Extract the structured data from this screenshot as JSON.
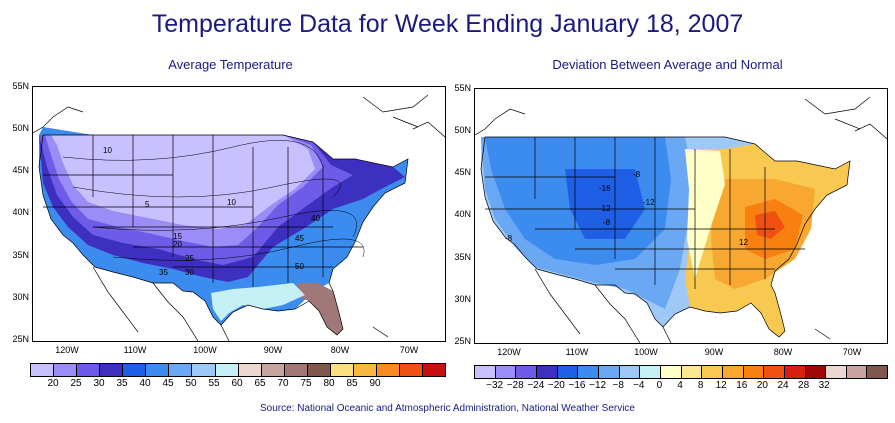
{
  "title": "Temperature Data for Week Ending January 18, 2007",
  "left_panel": {
    "subtitle": "Average Temperature",
    "lat_labels": [
      "55N",
      "50N",
      "45N",
      "40N",
      "35N",
      "30N",
      "25N"
    ],
    "lon_labels": [
      "120W",
      "110W",
      "100W",
      "90W",
      "80W",
      "70W"
    ],
    "contour_labels": [
      "10",
      "5",
      "10",
      "15",
      "20",
      "25",
      "30",
      "35",
      "40",
      "45",
      "50"
    ],
    "colorbar": {
      "colors": [
        "#c8c0ff",
        "#9c8cf8",
        "#6e5ce8",
        "#3d2fc0",
        "#1e5fe6",
        "#3c8cf0",
        "#6aa8f4",
        "#9ec8f6",
        "#c4f0f6",
        "#ecd8d0",
        "#c8a4a0",
        "#a07878",
        "#80584c",
        "#f8e080",
        "#f8b840",
        "#f88c20",
        "#f05010",
        "#c81010"
      ],
      "labels": [
        "20",
        "25",
        "30",
        "35",
        "40",
        "45",
        "50",
        "55",
        "60",
        "65",
        "70",
        "75",
        "80",
        "85",
        "90"
      ]
    }
  },
  "right_panel": {
    "subtitle": "Deviation Between Average and Normal",
    "lat_labels": [
      "55N",
      "50N",
      "45N",
      "40N",
      "35N",
      "30N",
      "25N"
    ],
    "lon_labels": [
      "120W",
      "110W",
      "100W",
      "90W",
      "80W",
      "70W"
    ],
    "contour_labels": [
      "-8",
      "-16",
      "-12",
      "-12",
      "-8",
      "-8",
      "12"
    ],
    "colorbar": {
      "colors": [
        "#c8c0ff",
        "#9c8cf8",
        "#6e5ce8",
        "#3d2fc0",
        "#1e5fe6",
        "#3c8cf0",
        "#6aa8f4",
        "#9ec8f6",
        "#c4f0f6",
        "#ffffc8",
        "#fce890",
        "#f8c850",
        "#f8a830",
        "#f88010",
        "#f05010",
        "#d82010",
        "#a00808",
        "#ecd8d0",
        "#c8a4a0",
        "#80584c"
      ],
      "labels": [
        "−32",
        "−28",
        "−24",
        "−20",
        "−16",
        "−12",
        "−8",
        "−4",
        "0",
        "4",
        "8",
        "12",
        "16",
        "20",
        "24",
        "28",
        "32"
      ]
    }
  },
  "source": "Source:  National Oceanic and Atmospheric Administration, National Weather Service"
}
